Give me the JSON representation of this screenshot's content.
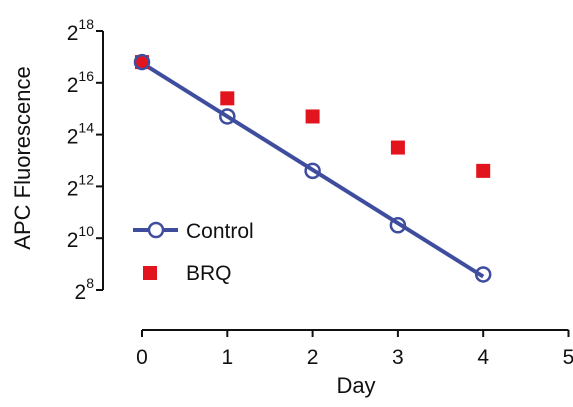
{
  "chart_data": {
    "type": "scatter",
    "xlabel": "Day",
    "ylabel": "APC Fluorescence",
    "xlim": [
      0,
      5
    ],
    "x_ticks": [
      0,
      1,
      2,
      3,
      4,
      5
    ],
    "x_tick_labels": [
      "0",
      "1",
      "2",
      "3",
      "4",
      "5"
    ],
    "y_scale": "log2",
    "y_lim_exponent": [
      8,
      18
    ],
    "y_ticks_exponent": [
      8,
      10,
      12,
      14,
      16,
      18
    ],
    "y_tick_base": "2",
    "y_tick_exponents": [
      "8",
      "10",
      "12",
      "14",
      "16",
      "18"
    ],
    "legend_position": "lower-left",
    "series": [
      {
        "name": "Control",
        "marker": "open-circle",
        "line": "fit",
        "color": "#3f4d9e",
        "x": [
          0,
          1,
          2,
          3,
          4
        ],
        "y_exponent": [
          16.8,
          14.7,
          12.6,
          10.5,
          8.6
        ]
      },
      {
        "name": "BRQ",
        "marker": "filled-square",
        "line": "none",
        "color": "#e2141d",
        "x": [
          0,
          1,
          2,
          3,
          4
        ],
        "y_exponent": [
          16.8,
          15.4,
          14.7,
          13.5,
          12.6
        ]
      }
    ]
  }
}
